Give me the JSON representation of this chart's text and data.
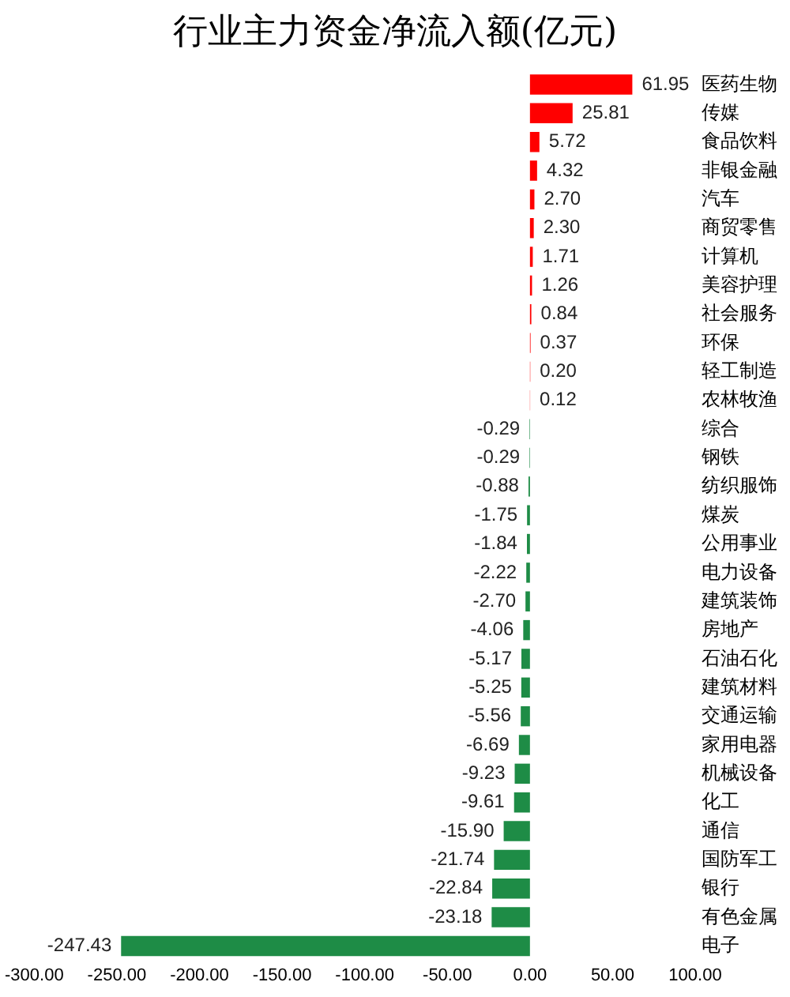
{
  "chart_data": {
    "type": "bar",
    "orientation": "horizontal",
    "title": "行业主力资金净流入额(亿元)",
    "categories": [
      "医药生物",
      "传媒",
      "食品饮料",
      "非银金融",
      "汽车",
      "商贸零售",
      "计算机",
      "美容护理",
      "社会服务",
      "环保",
      "轻工制造",
      "农林牧渔",
      "综合",
      "钢铁",
      "纺织服饰",
      "煤炭",
      "公用事业",
      "电力设备",
      "建筑装饰",
      "房地产",
      "石油石化",
      "建筑材料",
      "交通运输",
      "家用电器",
      "机械设备",
      "化工",
      "通信",
      "国防军工",
      "银行",
      "有色金属",
      "电子"
    ],
    "values": [
      61.95,
      25.81,
      5.72,
      4.32,
      2.7,
      2.3,
      1.71,
      1.26,
      0.84,
      0.37,
      0.2,
      0.12,
      -0.29,
      -0.29,
      -0.88,
      -1.75,
      -1.84,
      -2.22,
      -2.7,
      -4.06,
      -5.17,
      -5.25,
      -5.56,
      -6.69,
      -9.23,
      -9.61,
      -15.9,
      -21.74,
      -22.84,
      -23.18,
      -247.43
    ],
    "value_labels": [
      "61.95",
      "25.81",
      "5.72",
      "4.32",
      "2.70",
      "2.30",
      "1.71",
      "1.26",
      "0.84",
      "0.37",
      "0.20",
      "0.12",
      "-0.29",
      "-0.29",
      "-0.88",
      "-1.75",
      "-1.84",
      "-2.22",
      "-2.70",
      "-4.06",
      "-5.17",
      "-5.25",
      "-5.56",
      "-6.69",
      "-9.23",
      "-9.61",
      "-15.90",
      "-21.74",
      "-22.84",
      "-23.18",
      "-247.43"
    ],
    "colors": [
      "#ff0000",
      "#ff0000",
      "#ff0000",
      "#ff0000",
      "#ff0000",
      "#ff0000",
      "#ff0000",
      "#ff0000",
      "#ff0000",
      "#ff0000",
      "#ff0000",
      "#ff0000",
      "#1e8c46",
      "#1e8c46",
      "#1e8c46",
      "#1e8c46",
      "#1e8c46",
      "#1e8c46",
      "#1e8c46",
      "#1e8c46",
      "#1e8c46",
      "#1e8c46",
      "#1e8c46",
      "#1e8c46",
      "#1e8c46",
      "#1e8c46",
      "#1e8c46",
      "#1e8c46",
      "#1e8c46",
      "#1e8c46",
      "#1e8c46"
    ],
    "xlim": [
      -300,
      100
    ],
    "xticks": [
      {
        "value": -300,
        "label": "-300.00"
      },
      {
        "value": -250,
        "label": "-250.00"
      },
      {
        "value": -200,
        "label": "-200.00"
      },
      {
        "value": -150,
        "label": "-150.00"
      },
      {
        "value": -100,
        "label": "-100.00"
      },
      {
        "value": -50,
        "label": "-50.00"
      },
      {
        "value": 0,
        "label": "0.00"
      },
      {
        "value": 50,
        "label": "50.00"
      },
      {
        "value": 100,
        "label": "100.00"
      }
    ],
    "grid": false,
    "legend": false
  }
}
